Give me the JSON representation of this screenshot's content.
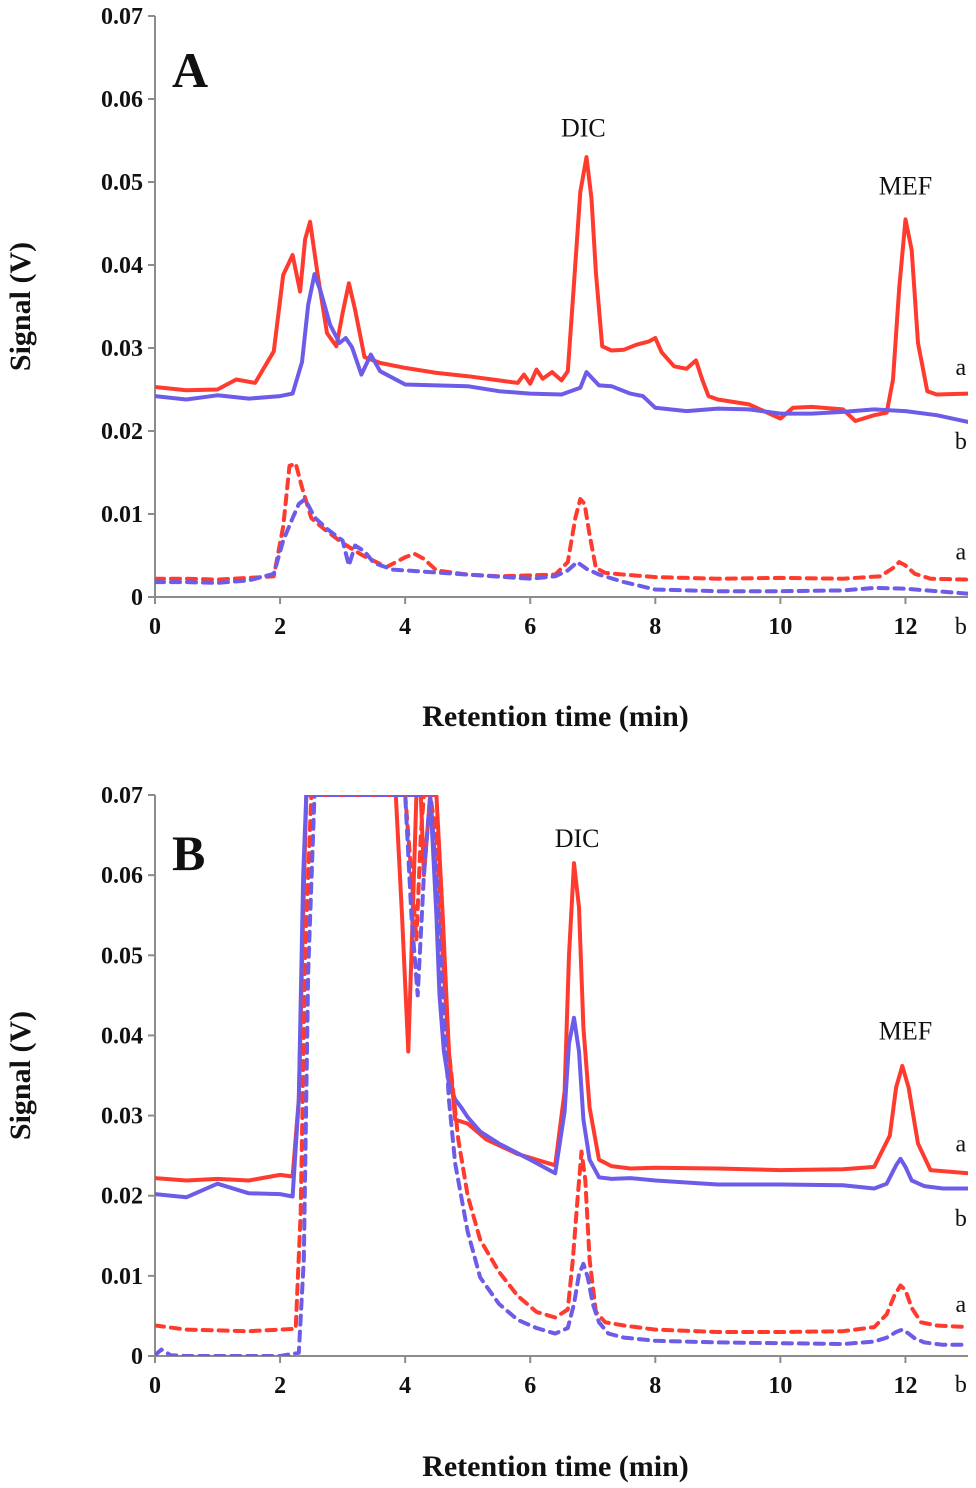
{
  "chart_data": [
    {
      "type": "line",
      "panel": "A",
      "xlabel": "Retention time (min)",
      "ylabel": "Signal (V)",
      "xlim": [
        0,
        13
      ],
      "ylim": [
        0,
        0.07
      ],
      "xticks": [
        0,
        2,
        4,
        6,
        8,
        10,
        12
      ],
      "xtick_labels": [
        "0",
        "2",
        "4",
        "6",
        "8",
        "10",
        "12"
      ],
      "yticks": [
        0,
        0.01,
        0.02,
        0.03,
        0.04,
        0.05,
        0.06,
        0.07
      ],
      "ytick_labels": [
        "0",
        "0.01",
        "0.02",
        "0.03",
        "0.04",
        "0.05",
        "0.06",
        "0.07"
      ],
      "grid": false,
      "annotations": [
        {
          "text": "DIC",
          "x": 6.85,
          "y": 0.0555
        },
        {
          "text": "MEF",
          "x": 12.0,
          "y": 0.0485
        }
      ],
      "series": [
        {
          "label": "a",
          "color": "#ff3b30",
          "style": "solid",
          "label_x": 12.95,
          "label_y": 0.0277,
          "x": [
            0,
            0.5,
            1,
            1.3,
            1.6,
            1.9,
            2.05,
            2.2,
            2.32,
            2.4,
            2.48,
            2.6,
            2.75,
            2.9,
            3.0,
            3.1,
            3.2,
            3.35,
            3.6,
            4,
            4.5,
            5,
            5.5,
            5.8,
            5.9,
            6.0,
            6.1,
            6.2,
            6.35,
            6.5,
            6.6,
            6.7,
            6.8,
            6.9,
            6.98,
            7.05,
            7.15,
            7.3,
            7.5,
            7.7,
            7.9,
            8.0,
            8.1,
            8.3,
            8.5,
            8.65,
            8.75,
            8.85,
            9,
            9.5,
            10,
            10.2,
            10.5,
            11,
            11.2,
            11.5,
            11.7,
            11.8,
            11.9,
            12.0,
            12.1,
            12.2,
            12.35,
            12.5,
            13
          ],
          "y": [
            0.0253,
            0.0249,
            0.025,
            0.0262,
            0.0258,
            0.0296,
            0.0388,
            0.0412,
            0.0368,
            0.0431,
            0.0452,
            0.0389,
            0.0318,
            0.0302,
            0.0342,
            0.0378,
            0.0346,
            0.0289,
            0.0282,
            0.0276,
            0.027,
            0.0266,
            0.0261,
            0.0258,
            0.0268,
            0.0257,
            0.0274,
            0.0263,
            0.0271,
            0.0261,
            0.0272,
            0.0378,
            0.0488,
            0.053,
            0.048,
            0.0391,
            0.0302,
            0.0297,
            0.0298,
            0.0304,
            0.0308,
            0.0312,
            0.0295,
            0.0278,
            0.0275,
            0.0285,
            0.0262,
            0.0242,
            0.0238,
            0.0232,
            0.0215,
            0.0228,
            0.0229,
            0.0226,
            0.0212,
            0.0219,
            0.0222,
            0.0262,
            0.0372,
            0.0455,
            0.0418,
            0.0306,
            0.0248,
            0.0244,
            0.0245
          ]
        },
        {
          "label": "b",
          "color": "#6d5ce8",
          "style": "solid",
          "label_x": 12.95,
          "label_y": 0.0188,
          "x": [
            0,
            0.5,
            1,
            1.5,
            2.0,
            2.2,
            2.35,
            2.45,
            2.55,
            2.65,
            2.8,
            2.95,
            3.05,
            3.15,
            3.3,
            3.45,
            3.6,
            4,
            5,
            5.5,
            6,
            6.5,
            6.8,
            6.9,
            7.1,
            7.3,
            7.6,
            7.8,
            8,
            8.5,
            9,
            9.5,
            10,
            10.5,
            11,
            11.5,
            12,
            12.5,
            13
          ],
          "y": [
            0.0242,
            0.0238,
            0.0243,
            0.0239,
            0.0242,
            0.0245,
            0.0283,
            0.0352,
            0.0389,
            0.0368,
            0.0328,
            0.0306,
            0.0312,
            0.0301,
            0.0268,
            0.0292,
            0.0272,
            0.0256,
            0.0254,
            0.0248,
            0.0245,
            0.0244,
            0.0252,
            0.0271,
            0.0255,
            0.0254,
            0.0245,
            0.0242,
            0.0228,
            0.0224,
            0.0227,
            0.0226,
            0.0221,
            0.0221,
            0.0223,
            0.0226,
            0.0224,
            0.0219,
            0.0211
          ]
        },
        {
          "label": "a",
          "color": "#ff3b30",
          "style": "dashed",
          "label_x": 12.95,
          "label_y": 0.0055,
          "x": [
            0,
            0.5,
            1,
            1.5,
            1.9,
            2.05,
            2.15,
            2.25,
            2.35,
            2.5,
            2.7,
            3.0,
            3.3,
            3.7,
            4.0,
            4.15,
            4.3,
            4.5,
            5,
            5.5,
            6,
            6.4,
            6.6,
            6.72,
            6.8,
            6.87,
            6.95,
            7.05,
            7.2,
            7.5,
            8,
            9,
            10,
            11,
            11.6,
            11.8,
            11.9,
            12.0,
            12.15,
            12.4,
            13
          ],
          "y": [
            0.0022,
            0.0022,
            0.0021,
            0.0023,
            0.0025,
            0.0085,
            0.0158,
            0.0161,
            0.0132,
            0.0095,
            0.0082,
            0.0065,
            0.0051,
            0.0036,
            0.0048,
            0.0052,
            0.0046,
            0.0032,
            0.0027,
            0.0025,
            0.0026,
            0.0027,
            0.0042,
            0.0095,
            0.0118,
            0.0112,
            0.0075,
            0.0035,
            0.0029,
            0.0027,
            0.0024,
            0.0022,
            0.0023,
            0.0022,
            0.0025,
            0.0035,
            0.0042,
            0.0038,
            0.0028,
            0.0022,
            0.0021
          ]
        },
        {
          "label": "b",
          "color": "#6d5ce8",
          "style": "dashed",
          "label_x": 12.95,
          "label_y": -0.0035,
          "x": [
            0,
            0.5,
            1,
            1.5,
            1.9,
            2.05,
            2.2,
            2.3,
            2.4,
            2.55,
            2.75,
            3.0,
            3.1,
            3.2,
            3.35,
            3.5,
            3.8,
            4.0,
            5,
            6,
            6.4,
            6.6,
            6.75,
            6.9,
            7.1,
            7.5,
            8,
            9,
            10,
            11,
            11.5,
            12,
            12.5,
            13
          ],
          "y": [
            0.0018,
            0.0018,
            0.0017,
            0.002,
            0.0028,
            0.0068,
            0.0095,
            0.0112,
            0.0118,
            0.0096,
            0.0082,
            0.0068,
            0.0038,
            0.0062,
            0.0055,
            0.0041,
            0.0033,
            0.0032,
            0.0027,
            0.0022,
            0.0025,
            0.0032,
            0.0042,
            0.0034,
            0.0027,
            0.0018,
            0.0009,
            0.0007,
            0.0007,
            0.0008,
            0.0011,
            0.001,
            0.0007,
            0.0004
          ]
        }
      ]
    },
    {
      "type": "line",
      "panel": "B",
      "xlabel": "Retention time (min)",
      "ylabel": "Signal (V)",
      "xlim": [
        0,
        13
      ],
      "ylim": [
        0,
        0.07
      ],
      "xticks": [
        0,
        2,
        4,
        6,
        8,
        10,
        12
      ],
      "xtick_labels": [
        "0",
        "2",
        "4",
        "6",
        "8",
        "10",
        "12"
      ],
      "yticks": [
        0,
        0.01,
        0.02,
        0.03,
        0.04,
        0.05,
        0.06,
        0.07
      ],
      "ytick_labels": [
        "0",
        "0.01",
        "0.02",
        "0.03",
        "0.04",
        "0.05",
        "0.06",
        "0.07"
      ],
      "grid": false,
      "annotations": [
        {
          "text": "DIC",
          "x": 6.75,
          "y": 0.0635
        },
        {
          "text": "MEF",
          "x": 12.0,
          "y": 0.0395
        }
      ],
      "series": [
        {
          "label": "a",
          "color": "#ff3b30",
          "style": "solid",
          "label_x": 12.95,
          "label_y": 0.0265,
          "x": [
            0,
            0.5,
            1,
            1.5,
            2,
            2.2,
            2.3,
            2.37,
            2.42,
            2.48,
            2.55,
            3.5,
            3.85,
            3.95,
            4.05,
            4.12,
            4.18,
            4.25,
            4.3,
            4.4,
            4.5,
            4.6,
            4.7,
            4.8,
            5.0,
            5.3,
            5.8,
            6.4,
            6.55,
            6.62,
            6.7,
            6.78,
            6.85,
            6.95,
            7.1,
            7.3,
            7.6,
            8,
            9,
            10,
            11,
            11.5,
            11.75,
            11.85,
            11.95,
            12.05,
            12.2,
            12.4,
            13
          ],
          "y": [
            0.0222,
            0.0219,
            0.0221,
            0.0219,
            0.0226,
            0.0224,
            0.032,
            0.055,
            0.07,
            0.07,
            0.07,
            0.07,
            0.07,
            0.055,
            0.038,
            0.055,
            0.07,
            0.07,
            0.06,
            0.07,
            0.07,
            0.055,
            0.038,
            0.0295,
            0.029,
            0.027,
            0.0252,
            0.0238,
            0.033,
            0.05,
            0.0615,
            0.056,
            0.041,
            0.031,
            0.0245,
            0.0237,
            0.0234,
            0.0235,
            0.0234,
            0.0232,
            0.0233,
            0.0236,
            0.0275,
            0.0335,
            0.0362,
            0.0335,
            0.0265,
            0.0232,
            0.0228
          ]
        },
        {
          "label": "b",
          "color": "#6d5ce8",
          "style": "solid",
          "label_x": 12.95,
          "label_y": 0.0172,
          "x": [
            0,
            0.5,
            1,
            1.5,
            2,
            2.2,
            2.3,
            2.37,
            2.42,
            2.5,
            3.5,
            4.4,
            4.5,
            4.55,
            4.62,
            4.7,
            4.8,
            4.9,
            5.0,
            5.2,
            5.5,
            6,
            6.4,
            6.55,
            6.62,
            6.7,
            6.78,
            6.85,
            6.95,
            7.1,
            7.3,
            7.6,
            8,
            9,
            10,
            11,
            11.5,
            11.7,
            11.85,
            11.92,
            12.0,
            12.1,
            12.3,
            12.6,
            13
          ],
          "y": [
            0.0202,
            0.0198,
            0.0215,
            0.0203,
            0.0202,
            0.0199,
            0.032,
            0.06,
            0.07,
            0.07,
            0.07,
            0.07,
            0.055,
            0.045,
            0.038,
            0.034,
            0.032,
            0.031,
            0.0298,
            0.028,
            0.0265,
            0.0245,
            0.0228,
            0.0305,
            0.039,
            0.0422,
            0.038,
            0.0295,
            0.0245,
            0.0223,
            0.0221,
            0.0222,
            0.0219,
            0.0214,
            0.0214,
            0.0213,
            0.0209,
            0.0215,
            0.0238,
            0.0246,
            0.0236,
            0.0219,
            0.0212,
            0.0209,
            0.0209
          ]
        },
        {
          "label": "a",
          "color": "#ff3b30",
          "style": "dashed",
          "label_x": 12.95,
          "label_y": 0.0065,
          "x": [
            0,
            0.5,
            1,
            1.5,
            2,
            2.25,
            2.33,
            2.4,
            2.5,
            3,
            4.0,
            4.1,
            4.18,
            4.25,
            4.3,
            4.35,
            4.4,
            4.5,
            4.6,
            4.7,
            4.85,
            5.0,
            5.2,
            5.5,
            5.8,
            6.1,
            6.4,
            6.6,
            6.68,
            6.76,
            6.82,
            6.88,
            6.95,
            7.05,
            7.2,
            7.5,
            8,
            9,
            10,
            11,
            11.5,
            11.7,
            11.82,
            11.92,
            12.0,
            12.1,
            12.25,
            12.5,
            13
          ],
          "y": [
            0.0038,
            0.0033,
            0.0032,
            0.0031,
            0.0033,
            0.0034,
            0.018,
            0.05,
            0.07,
            0.07,
            0.07,
            0.06,
            0.052,
            0.065,
            0.07,
            0.07,
            0.07,
            0.065,
            0.05,
            0.038,
            0.027,
            0.02,
            0.0145,
            0.0105,
            0.0075,
            0.0055,
            0.0048,
            0.0058,
            0.012,
            0.02,
            0.0255,
            0.022,
            0.012,
            0.0055,
            0.0042,
            0.0038,
            0.0033,
            0.003,
            0.003,
            0.0031,
            0.0036,
            0.0052,
            0.0075,
            0.0088,
            0.0082,
            0.006,
            0.0042,
            0.0038,
            0.0036
          ]
        },
        {
          "label": "b",
          "color": "#6d5ce8",
          "style": "dashed",
          "label_x": 12.95,
          "label_y": -0.0035,
          "x": [
            0,
            0.1,
            0.25,
            0.5,
            1,
            1.5,
            2,
            2.3,
            2.38,
            2.45,
            2.55,
            3,
            4.0,
            4.1,
            4.2,
            4.3,
            4.4,
            4.5,
            4.6,
            4.7,
            4.8,
            5.0,
            5.2,
            5.5,
            5.8,
            6.1,
            6.4,
            6.6,
            6.7,
            6.78,
            6.85,
            6.92,
            7.0,
            7.1,
            7.25,
            7.5,
            8,
            9,
            10,
            11,
            11.5,
            11.7,
            11.85,
            11.95,
            12.05,
            12.15,
            12.3,
            12.6,
            13
          ],
          "y": [
            0.0001,
            0.0008,
            0.0001,
            0.0,
            0.0,
            0.0,
            0.0,
            0.0004,
            0.012,
            0.048,
            0.07,
            0.07,
            0.07,
            0.055,
            0.045,
            0.06,
            0.07,
            0.06,
            0.045,
            0.032,
            0.024,
            0.0155,
            0.0098,
            0.0065,
            0.0045,
            0.0035,
            0.0028,
            0.0035,
            0.0065,
            0.0102,
            0.0115,
            0.0098,
            0.0065,
            0.0042,
            0.0028,
            0.0023,
            0.0019,
            0.0017,
            0.0016,
            0.0015,
            0.0018,
            0.0023,
            0.003,
            0.0033,
            0.0028,
            0.0022,
            0.0017,
            0.0014,
            0.0014
          ]
        }
      ]
    }
  ]
}
